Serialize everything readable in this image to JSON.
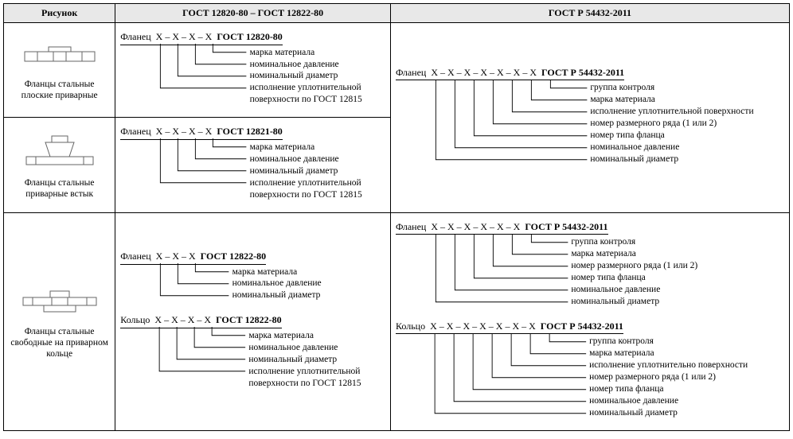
{
  "headers": {
    "pic": "Рисунок",
    "gost1": "ГОСТ 12820-80 – ГОСТ 12822-80",
    "gost2": "ГОСТ Р 54432-2011"
  },
  "rows": [
    {
      "caption": "Фланцы стальные плоские приварные",
      "drawing": "flat",
      "gost1": [
        {
          "lead": "Фланец",
          "pattern": "X – X – X – X",
          "suffix": "ГОСТ 12820-80",
          "labels": [
            "марка материала",
            "номинальное давление",
            "номинальный диаметр",
            "исполнение уплотнительной",
            "поверхности по ГОСТ 12815"
          ],
          "slots": 4,
          "label_groups": [
            1,
            1,
            1,
            2
          ]
        }
      ],
      "gost2_rowspan": 2,
      "gost2": [
        {
          "lead": "Фланец",
          "pattern": "X – X – X – X – X – X – X",
          "suffix": "ГОСТ Р 54432-2011",
          "labels": [
            "группа контроля",
            "марка материала",
            "исполнение уплотнительной поверхности",
            "номер размерного ряда (1 или 2)",
            "номер типа фланца",
            "номинальное давление",
            "номинальный диаметр"
          ],
          "slots": 7,
          "label_groups": [
            1,
            1,
            1,
            1,
            1,
            1,
            1
          ]
        }
      ]
    },
    {
      "caption": "Фланцы стальные приварные встык",
      "drawing": "neck",
      "gost1": [
        {
          "lead": "Фланец",
          "pattern": "X – X – X – X",
          "suffix": "ГОСТ 12821-80",
          "labels": [
            "марка материала",
            "номинальное давление",
            "номинальный диаметр",
            "исполнение уплотнительной",
            "поверхности по ГОСТ 12815"
          ],
          "slots": 4,
          "label_groups": [
            1,
            1,
            1,
            2
          ]
        }
      ]
    },
    {
      "caption": "Фланцы стальные свободные на приварном кольце",
      "drawing": "ring",
      "gost1": [
        {
          "lead": "Фланец",
          "pattern": "X – X – X",
          "suffix": "ГОСТ 12822-80",
          "labels": [
            "марка материала",
            "номинальное давление",
            "номинальный диаметр"
          ],
          "slots": 3,
          "label_groups": [
            1,
            1,
            1
          ]
        },
        {
          "lead": "Кольцо",
          "pattern": "X – X – X – X",
          "suffix": "ГОСТ 12822-80",
          "labels": [
            "марка материала",
            "номинальное давление",
            "номинальный диаметр",
            "исполнение уплотнительной",
            "поверхности по ГОСТ 12815"
          ],
          "slots": 4,
          "label_groups": [
            1,
            1,
            1,
            2
          ]
        }
      ],
      "gost2": [
        {
          "lead": "Фланец",
          "pattern": "X – X – X – X – X – X",
          "suffix": "ГОСТ Р 54432-2011",
          "labels": [
            "группа контроля",
            "марка материала",
            "номер размерного ряда (1 или 2)",
            "номер типа фланца",
            "номинальное  давление",
            "номинальный диаметр"
          ],
          "slots": 6,
          "label_groups": [
            1,
            1,
            1,
            1,
            1,
            1
          ]
        },
        {
          "lead": "Кольцо",
          "pattern": "X – X – X – X – X – X – X",
          "suffix": "ГОСТ Р 54432-2011",
          "labels": [
            "группа контроля",
            "марка материала",
            "исполнение уплотнительно поверхности",
            "номер размерного ряда (1 или 2)",
            "номер типа фланца",
            "номинальное давление",
            "номинальный диаметр"
          ],
          "slots": 7,
          "label_groups": [
            1,
            1,
            1,
            1,
            1,
            1,
            1
          ]
        }
      ]
    }
  ],
  "style": {
    "slot_width_small": 22,
    "slot_width_large": 24,
    "lead_gap": 8,
    "line_height": 15,
    "bracket_stroke": "#000",
    "bracket_width": 0.9
  }
}
